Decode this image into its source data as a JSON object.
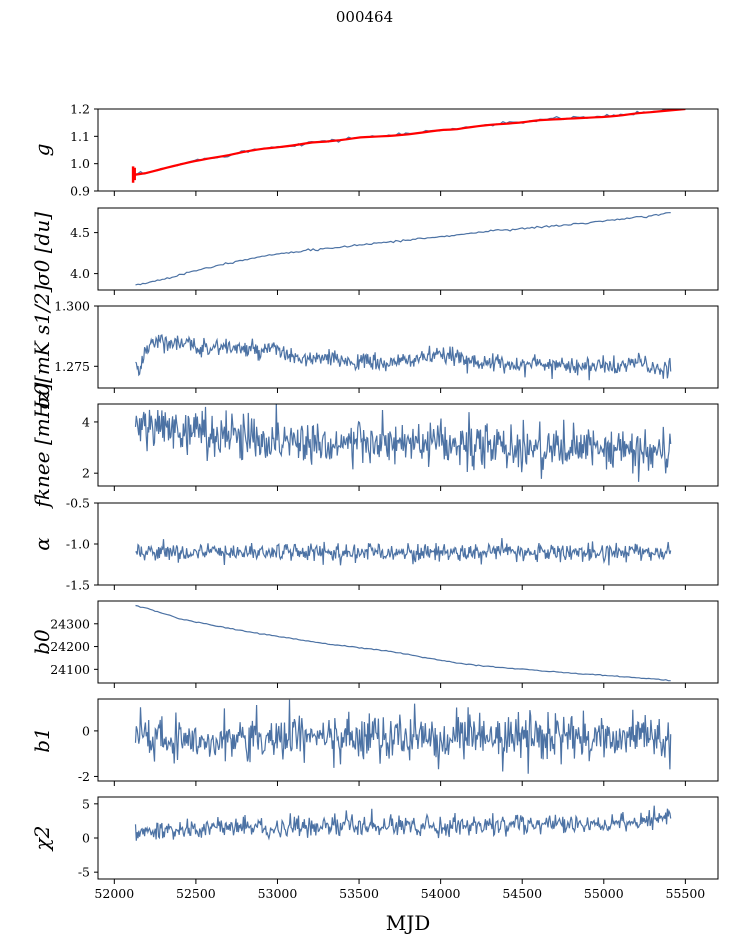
{
  "title": "000464",
  "chart_data": [
    {
      "type": "line",
      "ylabel": "g",
      "ylim": [
        0.9,
        1.2
      ],
      "yticks": [
        "0.9",
        "1.0",
        "1.1",
        "1.2"
      ],
      "xlim": [
        51900,
        55700
      ],
      "series": [
        {
          "color": "#4c72a4",
          "x": [
            52120,
            52200,
            52300,
            52400,
            52500,
            52600,
            52700,
            52800,
            52900,
            53000,
            53100,
            53200,
            53300,
            53400,
            53500,
            53600,
            53700,
            53800,
            53900,
            54000,
            54100,
            54200,
            54300,
            54400,
            54500,
            54600,
            54700,
            54800,
            54900,
            55000,
            55100,
            55200,
            55300,
            55410
          ],
          "y": [
            0.96,
            0.965,
            0.98,
            0.998,
            1.012,
            1.022,
            1.032,
            1.045,
            1.055,
            1.062,
            1.068,
            1.078,
            1.082,
            1.088,
            1.097,
            1.1,
            1.104,
            1.108,
            1.117,
            1.124,
            1.127,
            1.136,
            1.143,
            1.147,
            1.152,
            1.16,
            1.164,
            1.167,
            1.17,
            1.172,
            1.178,
            1.185,
            1.19,
            1.2
          ]
        },
        {
          "color": "#ff0000",
          "x": [
            52110,
            52200,
            52300,
            52400,
            52500,
            52600,
            52700,
            52800,
            52900,
            53000,
            53100,
            53200,
            53300,
            53400,
            53500,
            53600,
            53700,
            53800,
            53900,
            54000,
            54100,
            54200,
            54300,
            54400,
            54500,
            54600,
            54700,
            54800,
            54900,
            55000,
            55100,
            55200,
            55300,
            55500
          ],
          "y": [
            0.958,
            0.966,
            0.982,
            0.997,
            1.01,
            1.021,
            1.031,
            1.044,
            1.054,
            1.06,
            1.067,
            1.077,
            1.081,
            1.087,
            1.096,
            1.099,
            1.102,
            1.107,
            1.115,
            1.123,
            1.126,
            1.135,
            1.142,
            1.146,
            1.151,
            1.159,
            1.162,
            1.165,
            1.168,
            1.171,
            1.176,
            1.184,
            1.189,
            1.2
          ]
        }
      ]
    },
    {
      "type": "line",
      "ylabel": "σ0 [du]",
      "ylim": [
        3.8,
        4.8
      ],
      "yticks": [
        "4.0",
        "4.5"
      ],
      "series": [
        {
          "color": "#4c72a4",
          "x": [
            52130,
            52300,
            52500,
            52700,
            52900,
            53100,
            53300,
            53500,
            53700,
            53900,
            54100,
            54300,
            54500,
            54700,
            54900,
            55100,
            55300,
            55410
          ],
          "y": [
            3.86,
            3.93,
            4.04,
            4.13,
            4.21,
            4.27,
            4.3,
            4.35,
            4.39,
            4.43,
            4.47,
            4.52,
            4.55,
            4.58,
            4.62,
            4.66,
            4.71,
            4.74
          ]
        }
      ]
    },
    {
      "type": "line",
      "ylabel": "σ0[mK s1/2]",
      "ylim": [
        1.266,
        1.3
      ],
      "yticks": [
        "1.275",
        "1.300"
      ],
      "series": [
        {
          "color": "#4c72a4",
          "x": [
            52130,
            52150,
            52200,
            52300,
            52500,
            52700,
            52900,
            53000,
            53100,
            53300,
            53500,
            53700,
            53900,
            54100,
            54300,
            54500,
            54700,
            54900,
            55100,
            55200,
            55300,
            55350,
            55410
          ],
          "y": [
            1.276,
            1.272,
            1.284,
            1.286,
            1.283,
            1.283,
            1.281,
            1.282,
            1.278,
            1.278,
            1.277,
            1.276,
            1.279,
            1.279,
            1.276,
            1.276,
            1.276,
            1.275,
            1.275,
            1.277,
            1.275,
            1.272,
            1.274
          ]
        }
      ]
    },
    {
      "type": "line",
      "ylabel": "fknee [mHz]",
      "ylim": [
        1.5,
        4.7
      ],
      "yticks": [
        "2",
        "4"
      ],
      "series": [
        {
          "color": "#4c72a4",
          "x": [
            52130,
            52400,
            52700,
            53000,
            53300,
            53600,
            53900,
            54200,
            54500,
            54800,
            55100,
            55410
          ],
          "y": [
            3.9,
            3.7,
            3.5,
            3.3,
            3.2,
            3.15,
            3.1,
            3.05,
            3.0,
            2.95,
            2.9,
            2.8
          ]
        }
      ]
    },
    {
      "type": "line",
      "ylabel": "α",
      "ylim": [
        -1.5,
        -0.5
      ],
      "yticks": [
        "-1.5",
        "-1.0",
        "-0.5"
      ],
      "series": [
        {
          "color": "#4c72a4",
          "x": [
            52130,
            52500,
            53000,
            53500,
            54000,
            54500,
            55000,
            55410
          ],
          "y": [
            -1.1,
            -1.1,
            -1.1,
            -1.1,
            -1.1,
            -1.1,
            -1.1,
            -1.1
          ]
        }
      ]
    },
    {
      "type": "line",
      "ylabel": "b0",
      "ylim": [
        24040,
        24400
      ],
      "yticks": [
        "24100",
        "24200",
        "24300"
      ],
      "series": [
        {
          "color": "#4c72a4",
          "x": [
            52130,
            52200,
            52300,
            52400,
            52500,
            52700,
            52900,
            53100,
            53300,
            53500,
            53700,
            53900,
            54100,
            54300,
            54500,
            54700,
            54900,
            55100,
            55300,
            55410
          ],
          "y": [
            24380,
            24368,
            24345,
            24322,
            24308,
            24280,
            24256,
            24234,
            24212,
            24195,
            24178,
            24152,
            24128,
            24112,
            24101,
            24089,
            24078,
            24069,
            24057,
            24052
          ]
        }
      ]
    },
    {
      "type": "line",
      "ylabel": "b1",
      "ylim": [
        -2.2,
        1.4
      ],
      "yticks": [
        "-2",
        "0"
      ],
      "series": [
        {
          "color": "#4c72a4",
          "x": [
            52130,
            52500,
            53000,
            53500,
            54000,
            54500,
            55000,
            55410
          ],
          "y": [
            -0.3,
            -0.3,
            -0.3,
            -0.3,
            -0.3,
            -0.3,
            -0.3,
            -0.3
          ]
        }
      ]
    },
    {
      "type": "line",
      "ylabel": "χ2",
      "ylim": [
        -6,
        6
      ],
      "yticks": [
        "-5",
        "0",
        "5"
      ],
      "series": [
        {
          "color": "#4c72a4",
          "x": [
            52130,
            52400,
            52800,
            53200,
            53600,
            54000,
            54400,
            54800,
            55200,
            55410
          ],
          "y": [
            0.8,
            1.3,
            1.5,
            1.6,
            1.8,
            1.8,
            1.9,
            1.9,
            2.1,
            3.3
          ]
        }
      ]
    }
  ],
  "x_ticks": [
    "52000",
    "52500",
    "53000",
    "53500",
    "54000",
    "54500",
    "55000",
    "55500"
  ],
  "xlabel": "MJD"
}
